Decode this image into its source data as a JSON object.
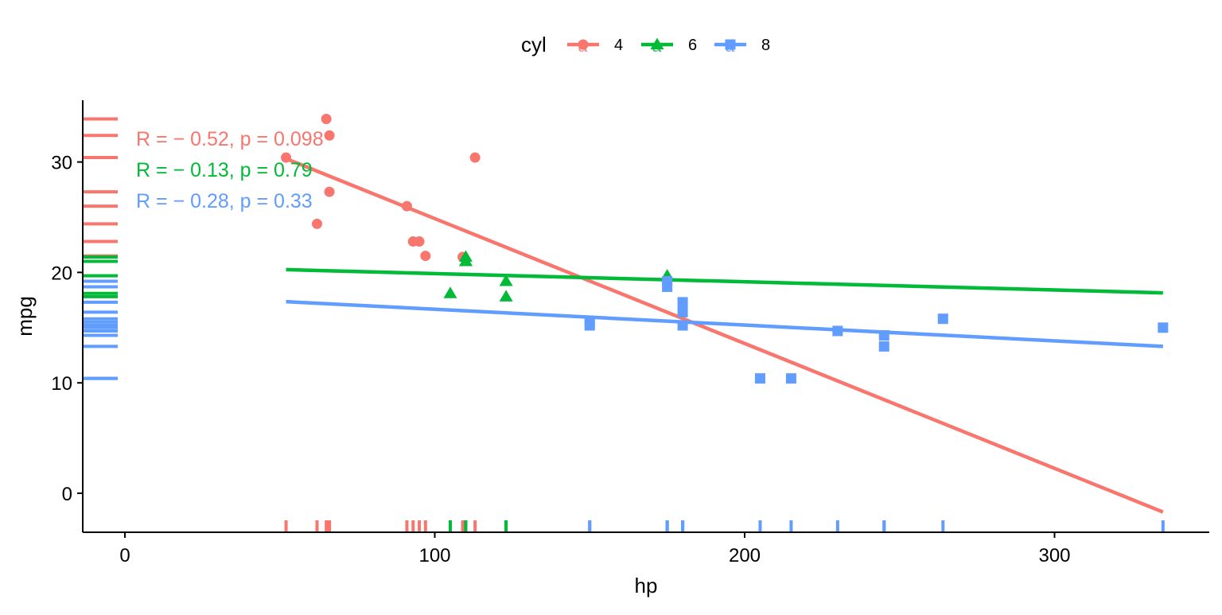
{
  "chart_data": {
    "type": "scatter",
    "title": "",
    "xlabel": "hp",
    "ylabel": "mpg",
    "xlim": [
      -14,
      350
    ],
    "ylim": [
      -3.5,
      35.5
    ],
    "xticks": [
      0,
      100,
      200,
      300
    ],
    "yticks": [
      0,
      10,
      20,
      30
    ],
    "xtick_labels": [
      "0",
      "100",
      "200",
      "300"
    ],
    "ytick_labels": [
      "0",
      "10",
      "20",
      "30"
    ],
    "grid": false,
    "legend": {
      "title": "cyl",
      "position": "top",
      "key_glyph_text": "a"
    },
    "series": [
      {
        "name": "4",
        "color": "#F8766D",
        "marker": "circle",
        "points": [
          [
            93,
            22.8
          ],
          [
            62,
            24.4
          ],
          [
            95,
            22.8
          ],
          [
            66,
            32.4
          ],
          [
            52,
            30.4
          ],
          [
            65,
            33.9
          ],
          [
            97,
            21.5
          ],
          [
            66,
            27.3
          ],
          [
            91,
            26.0
          ],
          [
            113,
            30.4
          ],
          [
            109,
            21.4
          ]
        ],
        "fit": {
          "x1": 52,
          "y1": 30.3,
          "x2": 335,
          "y2": -1.7
        },
        "annotation": {
          "text": "R = − 0.52, p = 0.098",
          "r": -0.52,
          "p": 0.098
        }
      },
      {
        "name": "6",
        "color": "#00BA38",
        "marker": "triangle",
        "points": [
          [
            110,
            21.0
          ],
          [
            110,
            21.0
          ],
          [
            110,
            21.4
          ],
          [
            105,
            18.1
          ],
          [
            123,
            19.2
          ],
          [
            123,
            17.8
          ],
          [
            175,
            19.7
          ]
        ],
        "fit": {
          "x1": 52,
          "y1": 20.25,
          "x2": 335,
          "y2": 18.15
        },
        "annotation": {
          "text": "R = − 0.13, p = 0.79",
          "r": -0.13,
          "p": 0.79
        }
      },
      {
        "name": "8",
        "color": "#619CFF",
        "marker": "square",
        "points": [
          [
            175,
            18.7
          ],
          [
            245,
            14.3
          ],
          [
            180,
            16.4
          ],
          [
            180,
            17.3
          ],
          [
            180,
            15.2
          ],
          [
            205,
            10.4
          ],
          [
            215,
            10.4
          ],
          [
            230,
            14.7
          ],
          [
            150,
            15.5
          ],
          [
            150,
            15.2
          ],
          [
            245,
            13.3
          ],
          [
            175,
            19.2
          ],
          [
            264,
            15.8
          ],
          [
            335,
            15.0
          ]
        ],
        "fit": {
          "x1": 52,
          "y1": 17.35,
          "x2": 335,
          "y2": 13.3
        },
        "annotation": {
          "text": "R = − 0.28, p = 0.33",
          "r": -0.28,
          "p": 0.33
        }
      }
    ]
  }
}
